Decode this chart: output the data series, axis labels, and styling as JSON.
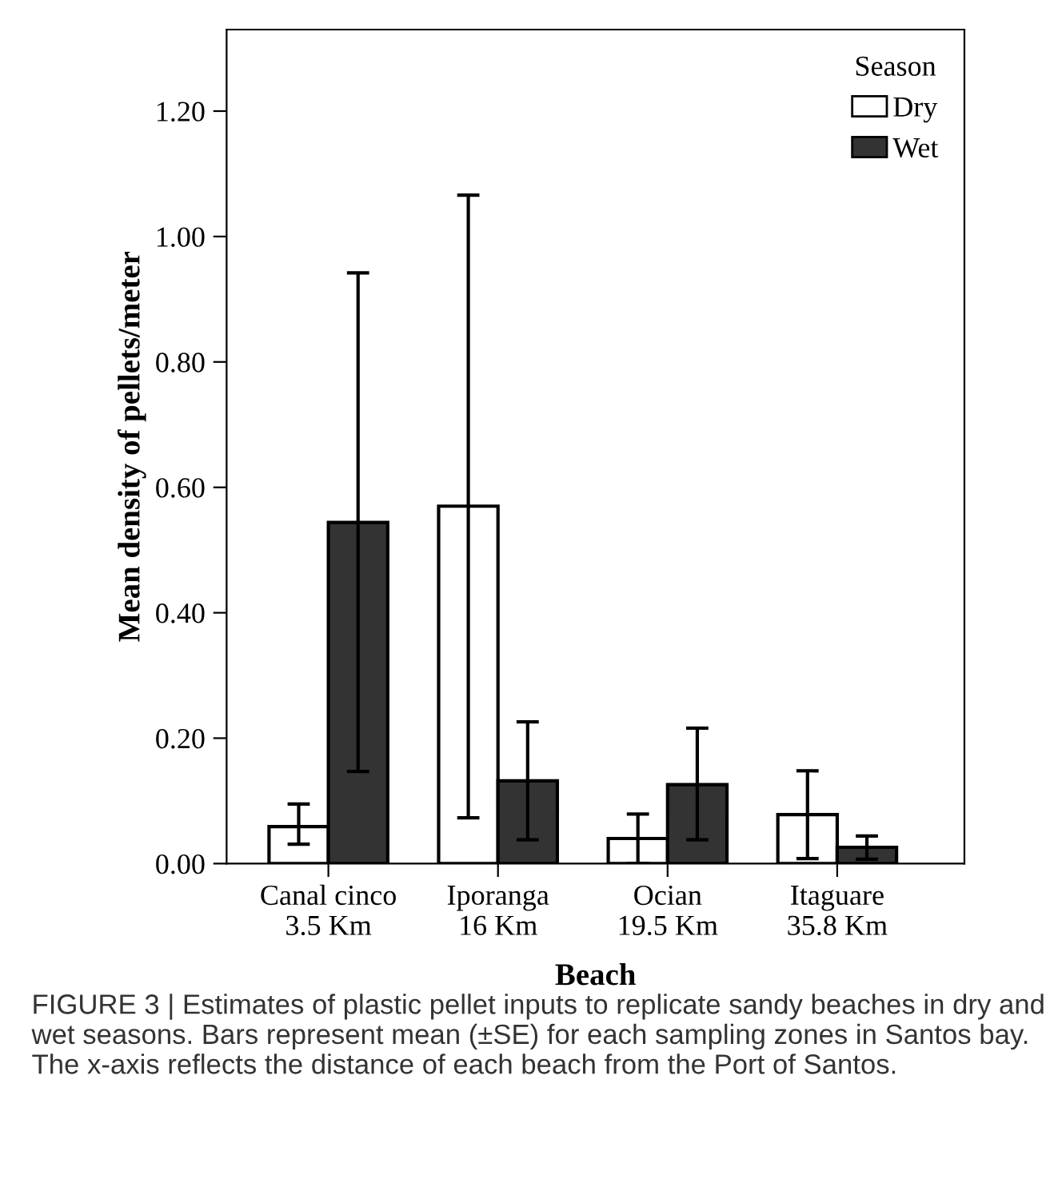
{
  "chart_data": {
    "type": "bar",
    "xlabel": "Beach",
    "ylabel": "Mean density of pellets/meter",
    "legend_title": "Season",
    "categories": [
      "Canal cinco\n3.5 Km",
      "Iporanga\n16 Km",
      "Ocian\n19.5 Km",
      "Itaguare\n35.8 Km"
    ],
    "series": [
      {
        "name": "Dry",
        "color": "#ffffff",
        "values": [
          0.059,
          0.57,
          0.04,
          0.078
        ],
        "errors": [
          [
            0.031,
            0.095
          ],
          [
            0.073,
            1.066
          ],
          [
            0.0,
            0.079
          ],
          [
            0.008,
            0.148
          ]
        ]
      },
      {
        "name": "Wet",
        "color": "#333333",
        "values": [
          0.544,
          0.132,
          0.126,
          0.026
        ],
        "errors": [
          [
            0.147,
            0.942
          ],
          [
            0.038,
            0.226
          ],
          [
            0.038,
            0.216
          ],
          [
            0.007,
            0.044
          ]
        ]
      }
    ],
    "ylim": [
      0,
      1.33
    ],
    "yticks": [
      {
        "value": 0,
        "label": "0.00"
      },
      {
        "value": 0.2,
        "label": "0.20"
      },
      {
        "value": 0.4,
        "label": "0.40"
      },
      {
        "value": 0.6,
        "label": "0.60"
      },
      {
        "value": 0.8,
        "label": "0.80"
      },
      {
        "value": 1.0,
        "label": "1.00"
      },
      {
        "value": 1.2,
        "label": "1.20"
      }
    ],
    "grid": false,
    "legend": "top right",
    "annotations": [
      "FIGURE 3 | Estimates of plastic pellet inputs to replicate sandy beaches in dry and wet seasons. Bars represent mean (±SE) for each sampling zones in Santos bay. The x-axis reflects the distance of each beach from the Port of Santos."
    ]
  }
}
